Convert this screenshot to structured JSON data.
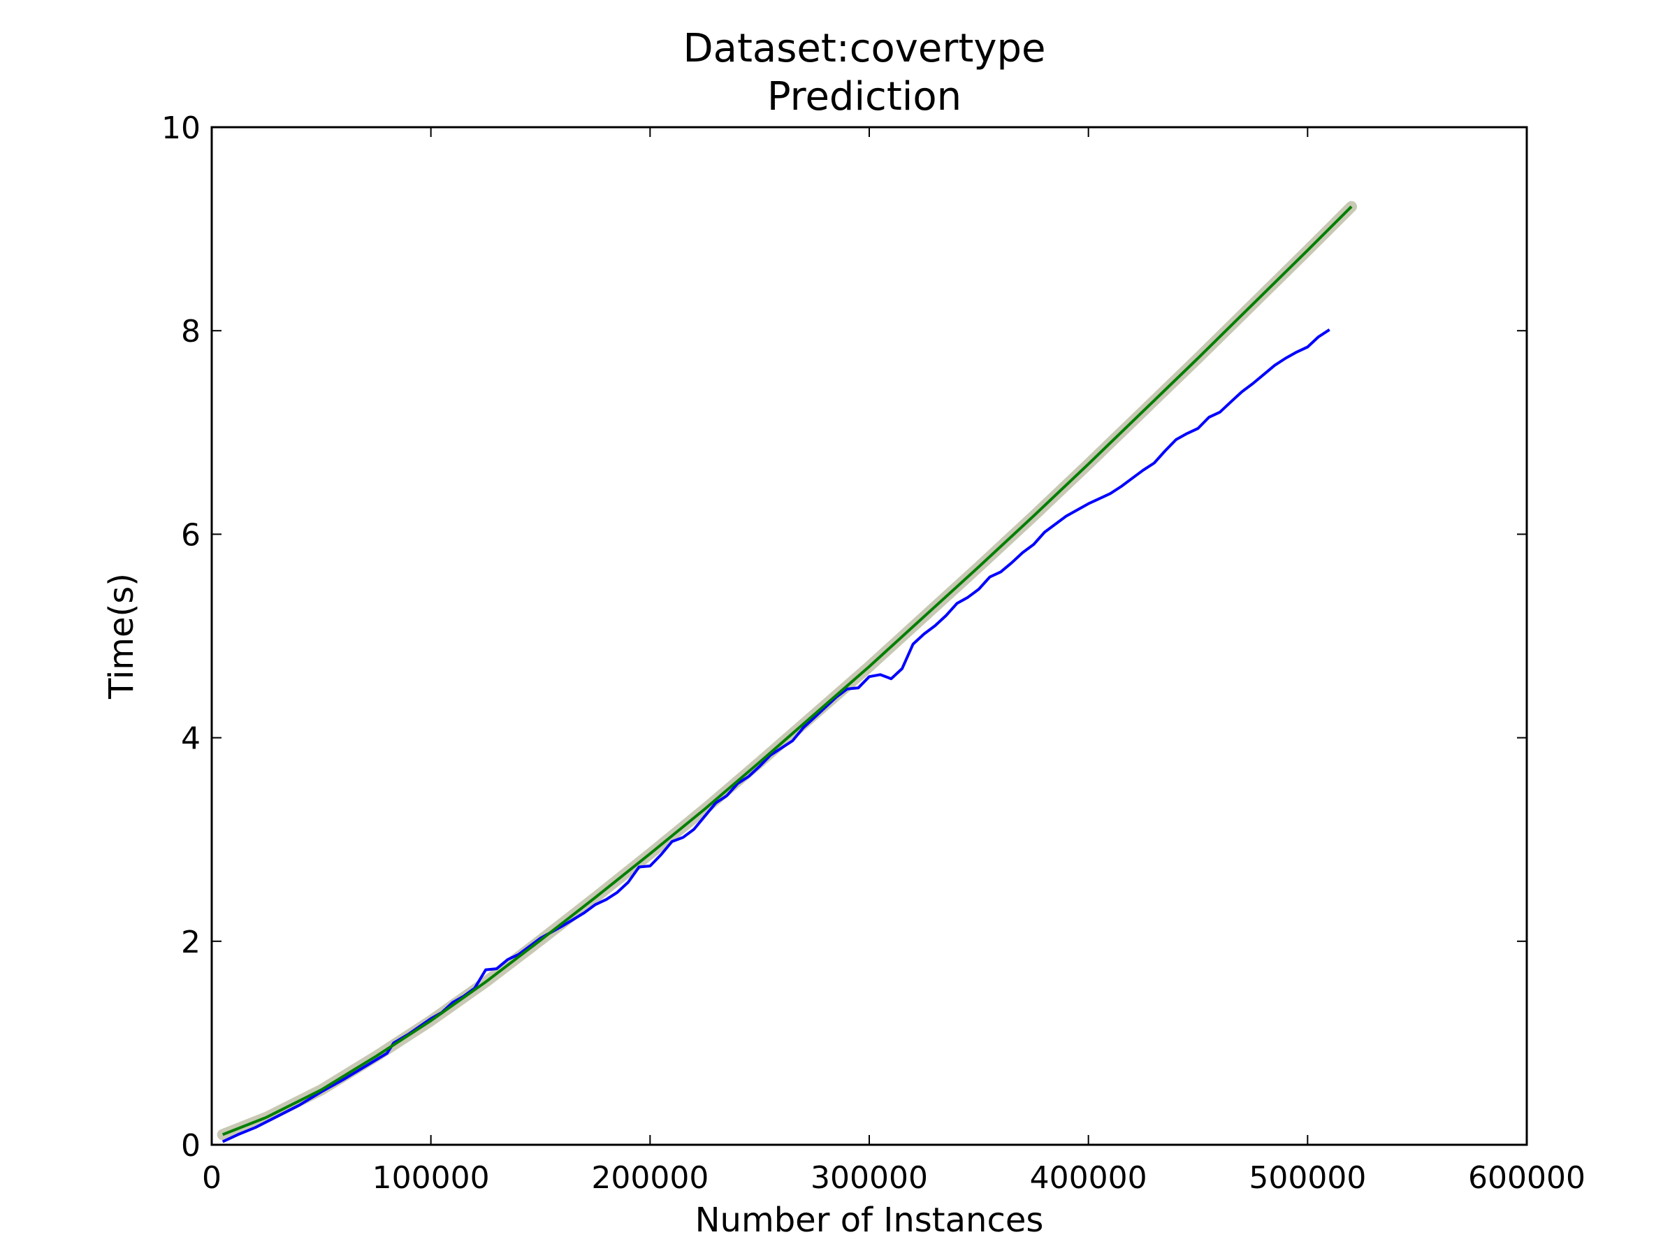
{
  "chart_data": {
    "type": "line",
    "title": "Dataset:covertype",
    "subtitle": "Prediction",
    "xlabel": "Number of Instances",
    "ylabel": "Time(s)",
    "xlim": [
      0,
      600000
    ],
    "ylim": [
      0,
      10
    ],
    "x_ticks": [
      "0",
      "100000",
      "200000",
      "300000",
      "400000",
      "500000",
      "600000"
    ],
    "y_ticks": [
      "0",
      "2",
      "4",
      "6",
      "8",
      "10"
    ],
    "grid": false,
    "legend": "none",
    "series": [
      {
        "color": "#0000ff",
        "points": [
          [
            5000,
            0.03
          ],
          [
            12000,
            0.1
          ],
          [
            20000,
            0.17
          ],
          [
            30000,
            0.28
          ],
          [
            40000,
            0.39
          ],
          [
            50000,
            0.52
          ],
          [
            60000,
            0.64
          ],
          [
            70000,
            0.77
          ],
          [
            80000,
            0.9
          ],
          [
            83000,
            1.0
          ],
          [
            90000,
            1.09
          ],
          [
            100000,
            1.24
          ],
          [
            105000,
            1.3
          ],
          [
            110000,
            1.4
          ],
          [
            115000,
            1.46
          ],
          [
            120000,
            1.54
          ],
          [
            125000,
            1.72
          ],
          [
            130000,
            1.73
          ],
          [
            135000,
            1.82
          ],
          [
            140000,
            1.87
          ],
          [
            150000,
            2.03
          ],
          [
            160000,
            2.15
          ],
          [
            170000,
            2.28
          ],
          [
            175000,
            2.36
          ],
          [
            180000,
            2.41
          ],
          [
            185000,
            2.48
          ],
          [
            190000,
            2.58
          ],
          [
            195000,
            2.73
          ],
          [
            200000,
            2.74
          ],
          [
            205000,
            2.85
          ],
          [
            210000,
            2.98
          ],
          [
            215000,
            3.02
          ],
          [
            220000,
            3.1
          ],
          [
            225000,
            3.23
          ],
          [
            230000,
            3.36
          ],
          [
            235000,
            3.43
          ],
          [
            240000,
            3.55
          ],
          [
            245000,
            3.62
          ],
          [
            250000,
            3.72
          ],
          [
            255000,
            3.83
          ],
          [
            260000,
            3.9
          ],
          [
            265000,
            3.97
          ],
          [
            270000,
            4.1
          ],
          [
            275000,
            4.2
          ],
          [
            280000,
            4.3
          ],
          [
            285000,
            4.4
          ],
          [
            290000,
            4.48
          ],
          [
            295000,
            4.49
          ],
          [
            300000,
            4.6
          ],
          [
            305000,
            4.62
          ],
          [
            310000,
            4.58
          ],
          [
            315000,
            4.68
          ],
          [
            320000,
            4.92
          ],
          [
            325000,
            5.02
          ],
          [
            330000,
            5.1
          ],
          [
            335000,
            5.2
          ],
          [
            340000,
            5.32
          ],
          [
            345000,
            5.38
          ],
          [
            350000,
            5.46
          ],
          [
            355000,
            5.58
          ],
          [
            360000,
            5.63
          ],
          [
            365000,
            5.72
          ],
          [
            370000,
            5.82
          ],
          [
            375000,
            5.9
          ],
          [
            380000,
            6.02
          ],
          [
            390000,
            6.18
          ],
          [
            400000,
            6.3
          ],
          [
            405000,
            6.35
          ],
          [
            410000,
            6.4
          ],
          [
            415000,
            6.47
          ],
          [
            420000,
            6.55
          ],
          [
            425000,
            6.63
          ],
          [
            430000,
            6.7
          ],
          [
            435000,
            6.82
          ],
          [
            440000,
            6.93
          ],
          [
            445000,
            6.99
          ],
          [
            450000,
            7.04
          ],
          [
            455000,
            7.15
          ],
          [
            460000,
            7.2
          ],
          [
            465000,
            7.3
          ],
          [
            470000,
            7.4
          ],
          [
            475000,
            7.48
          ],
          [
            480000,
            7.57
          ],
          [
            485000,
            7.66
          ],
          [
            490000,
            7.73
          ],
          [
            495000,
            7.79
          ],
          [
            500000,
            7.84
          ],
          [
            505000,
            7.94
          ],
          [
            510000,
            8.01
          ]
        ]
      },
      {
        "color": "#007f00",
        "band_color": "#c8c8b4",
        "points": [
          [
            5000,
            0.1
          ],
          [
            25000,
            0.27
          ],
          [
            50000,
            0.54
          ],
          [
            75000,
            0.87
          ],
          [
            100000,
            1.22
          ],
          [
            125000,
            1.6
          ],
          [
            150000,
            2.01
          ],
          [
            175000,
            2.43
          ],
          [
            200000,
            2.86
          ],
          [
            225000,
            3.3
          ],
          [
            250000,
            3.76
          ],
          [
            275000,
            4.23
          ],
          [
            300000,
            4.7
          ],
          [
            325000,
            5.19
          ],
          [
            350000,
            5.68
          ],
          [
            375000,
            6.18
          ],
          [
            400000,
            6.69
          ],
          [
            425000,
            7.21
          ],
          [
            450000,
            7.73
          ],
          [
            475000,
            8.26
          ],
          [
            500000,
            8.79
          ],
          [
            520000,
            9.22
          ]
        ]
      }
    ]
  }
}
